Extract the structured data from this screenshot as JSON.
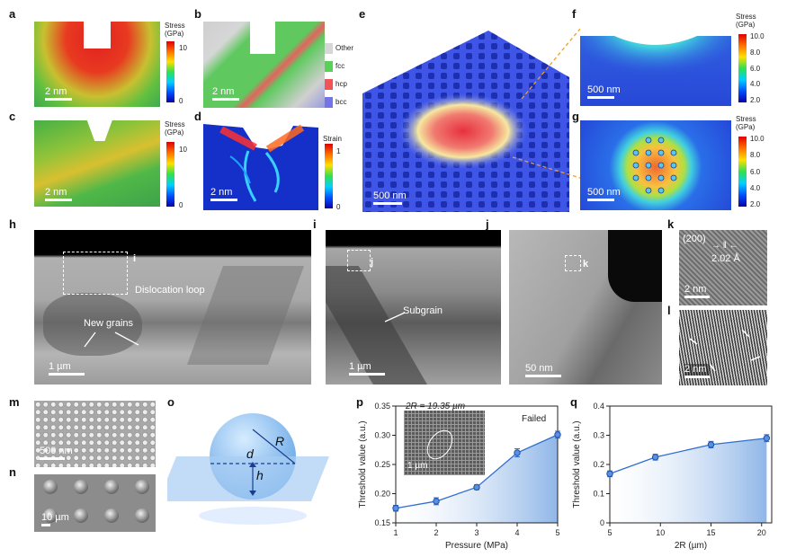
{
  "panels": {
    "a": {
      "label": "a",
      "scale": "2 nm",
      "cbar_title": "Stress (GPa)",
      "ticks": [
        "10",
        "0"
      ]
    },
    "b": {
      "label": "b",
      "scale": "2 nm",
      "legend": [
        {
          "name": "Other",
          "color": "#d7d7d7"
        },
        {
          "name": "fcc",
          "color": "#59d159"
        },
        {
          "name": "hcp",
          "color": "#f05454"
        },
        {
          "name": "bcc",
          "color": "#7474e8"
        }
      ]
    },
    "c": {
      "label": "c",
      "scale": "2 nm",
      "cbar_title": "Stress (GPa)",
      "ticks": [
        "10",
        "0"
      ]
    },
    "d": {
      "label": "d",
      "scale": "2 nm",
      "cbar_title": "Strain",
      "ticks": [
        "1",
        "0"
      ]
    },
    "e": {
      "label": "e",
      "scale": "500 nm"
    },
    "f": {
      "label": "f",
      "scale": "500 nm",
      "cbar_title": "Stress (GPa)",
      "ticks": [
        "10.0",
        "8.0",
        "6.0",
        "4.0",
        "2.0"
      ]
    },
    "g": {
      "label": "g",
      "scale": "500 nm",
      "cbar_title": "Stress (GPa)",
      "ticks": [
        "10.0",
        "8.0",
        "6.0",
        "4.0",
        "2.0"
      ]
    },
    "h": {
      "label": "h",
      "scale": "1 µm",
      "box_label": "i",
      "dislocation": "Dislocation loop",
      "grains": "New grains"
    },
    "i": {
      "label": "i",
      "scale": "1 µm",
      "box_label": "j",
      "subgrain": "Subgrain"
    },
    "j": {
      "label": "j",
      "scale": "50 nm",
      "box_label": "k"
    },
    "k": {
      "label": "k",
      "plane": "(200)",
      "spacing": "2.02 Å",
      "scale": "2 nm"
    },
    "l": {
      "label": "l",
      "scale": "2 nm"
    },
    "m": {
      "label": "m",
      "scale": "500 nm"
    },
    "n": {
      "label": "n",
      "scale": "10 µm"
    },
    "o": {
      "label": "o",
      "R": "R",
      "d": "d",
      "h": "h"
    },
    "p": {
      "label": "p",
      "inset_title": "2R = 19.35 µm",
      "inset_scale": "1 µm",
      "failed": "Failed"
    },
    "q": {
      "label": "q"
    }
  },
  "chart_data": [
    {
      "type": "line",
      "panel": "p",
      "title": "",
      "xlabel": "Pressure (MPa)",
      "ylabel": "Threshold value (a.u.)",
      "x": [
        1,
        2,
        3,
        4,
        5
      ],
      "values": [
        0.175,
        0.187,
        0.211,
        0.27,
        0.301
      ],
      "errors": [
        0.005,
        0.006,
        0.004,
        0.007,
        0.006
      ],
      "xlim": [
        1,
        5
      ],
      "ylim": [
        0.15,
        0.35
      ],
      "xticks": [
        "1",
        "2",
        "3",
        "4",
        "5"
      ],
      "yticks": [
        "0.15",
        "0.20",
        "0.25",
        "0.30",
        "0.35"
      ],
      "color": "#2f6fd1"
    },
    {
      "type": "line",
      "panel": "q",
      "title": "",
      "xlabel": "2R (µm)",
      "ylabel": "Threshold value (a.u.)",
      "x": [
        5,
        9.5,
        15,
        20.5
      ],
      "values": [
        0.168,
        0.225,
        0.268,
        0.29
      ],
      "errors": [
        0.01,
        0.01,
        0.011,
        0.012
      ],
      "xlim": [
        5,
        21
      ],
      "ylim": [
        0,
        0.4
      ],
      "xticks": [
        "5",
        "10",
        "15",
        "20"
      ],
      "yticks": [
        "0",
        "0.1",
        "0.2",
        "0.3",
        "0.4"
      ],
      "color": "#2f6fd1"
    }
  ]
}
